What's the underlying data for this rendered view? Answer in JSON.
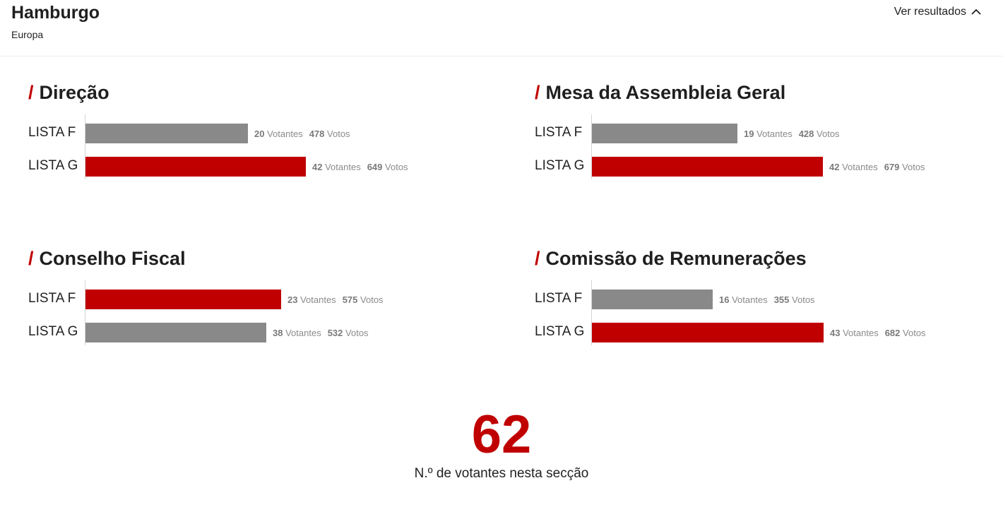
{
  "location": {
    "title": "Hamburgo",
    "subtitle": "Europa"
  },
  "toggle": {
    "label": "Ver resultados",
    "icon": "chevron-up-icon"
  },
  "colors": {
    "accent": "#c00000",
    "neutral": "#898989"
  },
  "scale_max_votes": 950,
  "sections": [
    {
      "title": "Direção",
      "rows": [
        {
          "label": "LISTA F",
          "votantes": 20,
          "votantes_label": "Votantes",
          "votos": 478,
          "votos_label": "Votos",
          "winner": false
        },
        {
          "label": "LISTA G",
          "votantes": 42,
          "votantes_label": "Votantes",
          "votos": 649,
          "votos_label": "Votos",
          "winner": true
        }
      ]
    },
    {
      "title": "Mesa da Assembleia Geral",
      "rows": [
        {
          "label": "LISTA F",
          "votantes": 19,
          "votantes_label": "Votantes",
          "votos": 428,
          "votos_label": "Votos",
          "winner": false
        },
        {
          "label": "LISTA G",
          "votantes": 42,
          "votantes_label": "Votantes",
          "votos": 679,
          "votos_label": "Votos",
          "winner": true
        }
      ]
    },
    {
      "title": "Conselho Fiscal",
      "rows": [
        {
          "label": "LISTA F",
          "votantes": 23,
          "votantes_label": "Votantes",
          "votos": 575,
          "votos_label": "Votos",
          "winner": true
        },
        {
          "label": "LISTA G",
          "votantes": 38,
          "votantes_label": "Votantes",
          "votos": 532,
          "votos_label": "Votos",
          "winner": false
        }
      ]
    },
    {
      "title": "Comissão de Remunerações",
      "rows": [
        {
          "label": "LISTA F",
          "votantes": 16,
          "votantes_label": "Votantes",
          "votos": 355,
          "votos_label": "Votos",
          "winner": false
        },
        {
          "label": "LISTA G",
          "votantes": 43,
          "votantes_label": "Votantes",
          "votos": 682,
          "votos_label": "Votos",
          "winner": true
        }
      ]
    }
  ],
  "summary": {
    "value": "62",
    "caption": "N.º de votantes nesta secção"
  }
}
